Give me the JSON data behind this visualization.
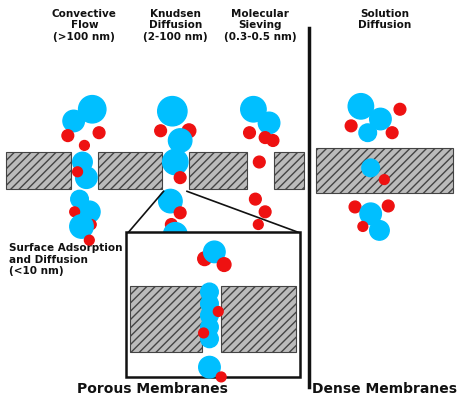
{
  "bg_color": "#ffffff",
  "cyan": "#00BFFF",
  "red": "#EE1111",
  "black": "#111111",
  "label_convective": "Convective\nFlow\n(>100 nm)",
  "label_knudsen": "Knudsen\nDiffusion\n(2-100 nm)",
  "label_molecular": "Molecular\nSieving\n(0.3-0.5 nm)",
  "label_solution": "Solution\nDiffusion",
  "label_surface": "Surface Adsorption\nand Diffusion\n(<10 nm)",
  "label_porous": "Porous Membranes",
  "label_dense": "Dense Membranes",
  "figsize": [
    4.74,
    4.09
  ],
  "dpi": 100
}
